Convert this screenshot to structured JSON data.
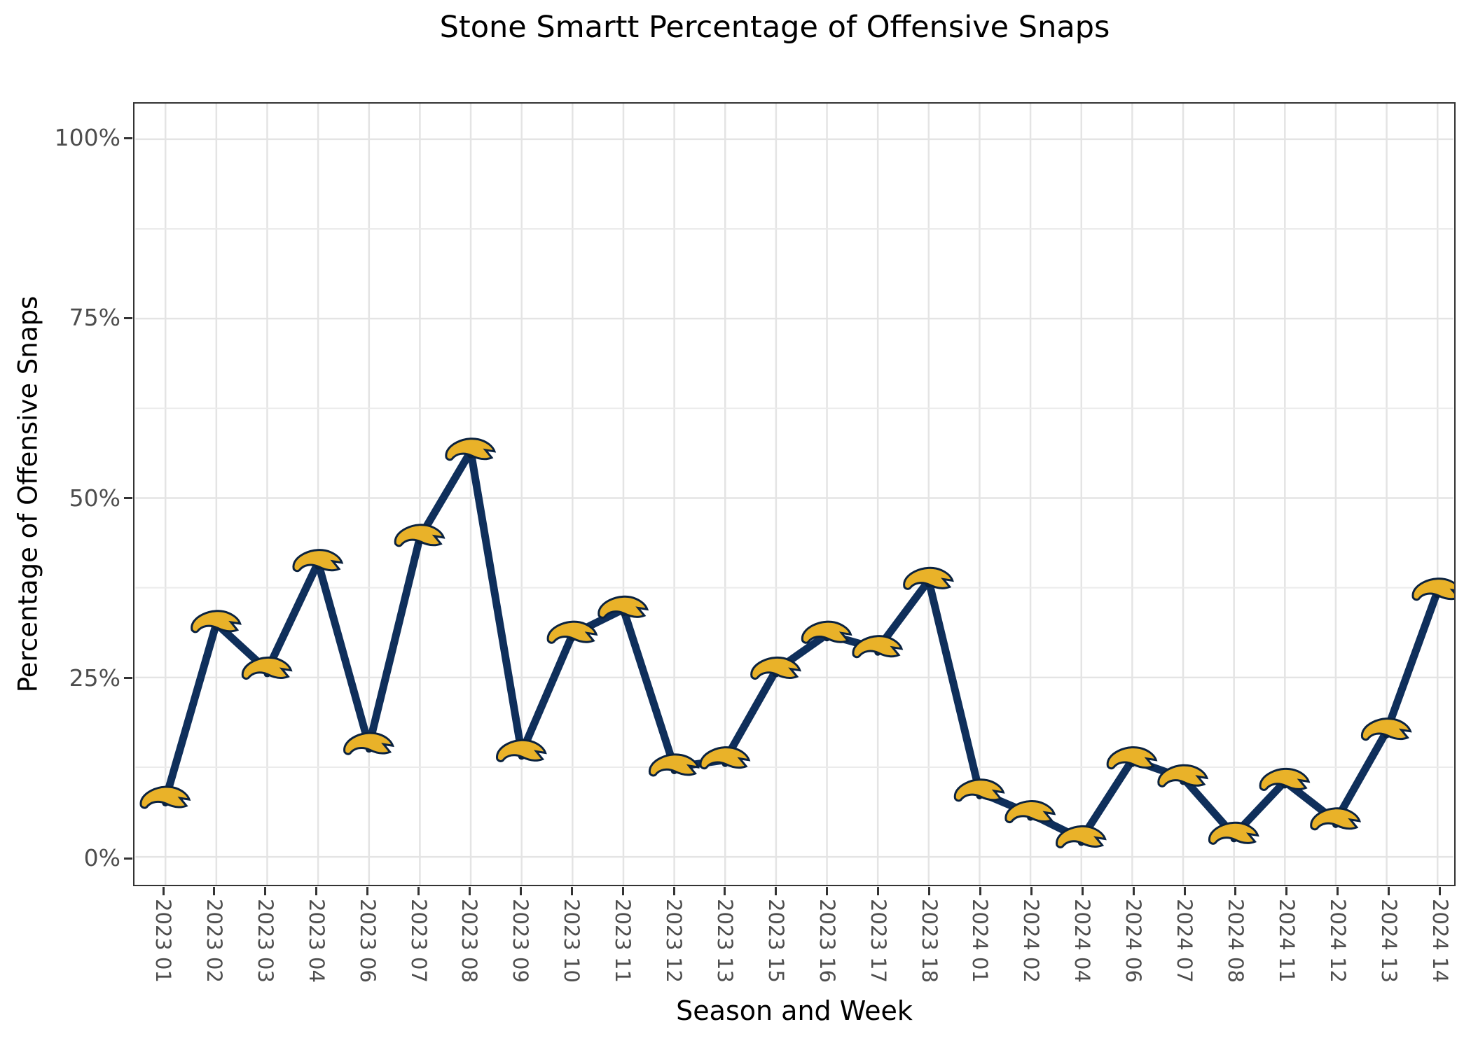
{
  "title": "Stone Smartt Percentage of Offensive Snaps",
  "chart_data": {
    "type": "line",
    "title": "Stone Smartt Percentage of Offensive Snaps",
    "xlabel": "Season and Week",
    "ylabel": "Percentage of Offensive Snaps",
    "categories": [
      "2023 01",
      "2023 02",
      "2023 03",
      "2023 04",
      "2023 06",
      "2023 07",
      "2023 08",
      "2023 09",
      "2023 10",
      "2023 11",
      "2023 12",
      "2023 13",
      "2023 15",
      "2023 16",
      "2023 17",
      "2023 18",
      "2024 01",
      "2024 02",
      "2024 04",
      "2024 06",
      "2024 07",
      "2024 08",
      "2024 11",
      "2024 12",
      "2024 13",
      "2024 14"
    ],
    "values": [
      8,
      32.5,
      26,
      41,
      15.5,
      44.5,
      56.5,
      14.5,
      31,
      34.5,
      12.5,
      13.5,
      26,
      31,
      29,
      38.5,
      9,
      6,
      2.5,
      13.5,
      11,
      3,
      10.5,
      5,
      17.5,
      37
    ],
    "y_ticks": [
      "0%",
      "25%",
      "50%",
      "75%",
      "100%"
    ],
    "y_tick_values": [
      0,
      25,
      50,
      75,
      100
    ],
    "ylim": [
      -5,
      105
    ],
    "grid": "horizontal major+minor, vertical at each tick",
    "legend": "none",
    "marker": "chargers-lightning-bolt-logo",
    "colors": {
      "line": "#0f2f5b",
      "marker_gold": "#e9b229",
      "marker_navy": "#0a2240",
      "grid_major": "#e4e4e4",
      "grid_minor": "#ebebeb",
      "panel_border": "#333333",
      "tick_label": "#4d4d4d",
      "title_color": "#000000",
      "background": "#ffffff"
    }
  }
}
